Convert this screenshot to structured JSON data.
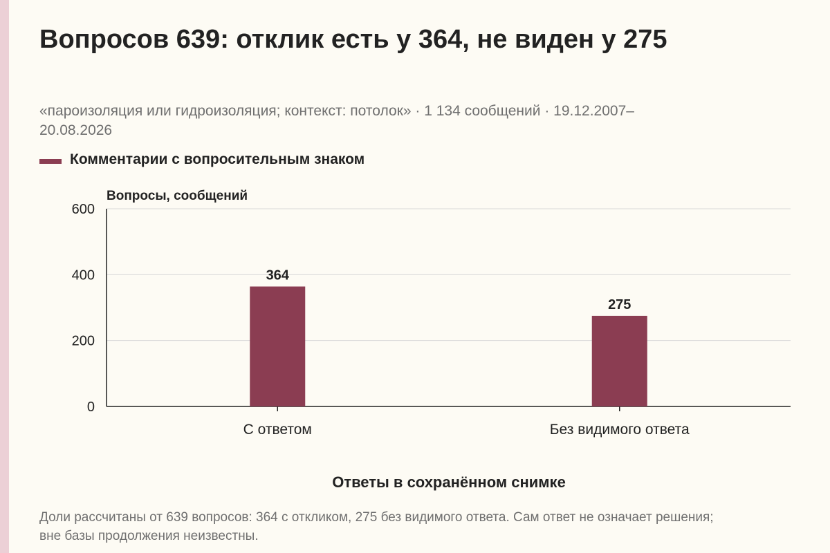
{
  "title": "Вопросов 639: отклик есть у 364, не виден у 275",
  "subtitle": "«пароизоляция или гидроизоляция; контекст: потолок» · 1 134 сообщений · 19.12.2007–20.08.2026",
  "note": "Доли рассчитаны от 639 вопросов: 364 с откликом, 275 без видимого ответа. Сам ответ не означает решения; вне базы продолжения неизвестны.",
  "colors": {
    "bar": "#8b3d52",
    "grid": "#d9d9d9",
    "axis": "#222222",
    "accent_strip": "#ecd0d6",
    "background": "#fdfbf4"
  },
  "chart_data": {
    "type": "bar",
    "categories": [
      "С ответом",
      "Без видимого ответа"
    ],
    "series": [
      {
        "name": "Комментарии с вопросительным знаком",
        "values": [
          364,
          275
        ]
      }
    ],
    "data_labels": [
      "364",
      "275"
    ],
    "xlabel": "Ответы в сохранённом снимке",
    "ylabel": "Вопросы, сообщений",
    "ylim": [
      0,
      600
    ],
    "yticks": [
      0,
      200,
      400,
      600
    ],
    "grid": true,
    "legend_position": "top-left"
  }
}
